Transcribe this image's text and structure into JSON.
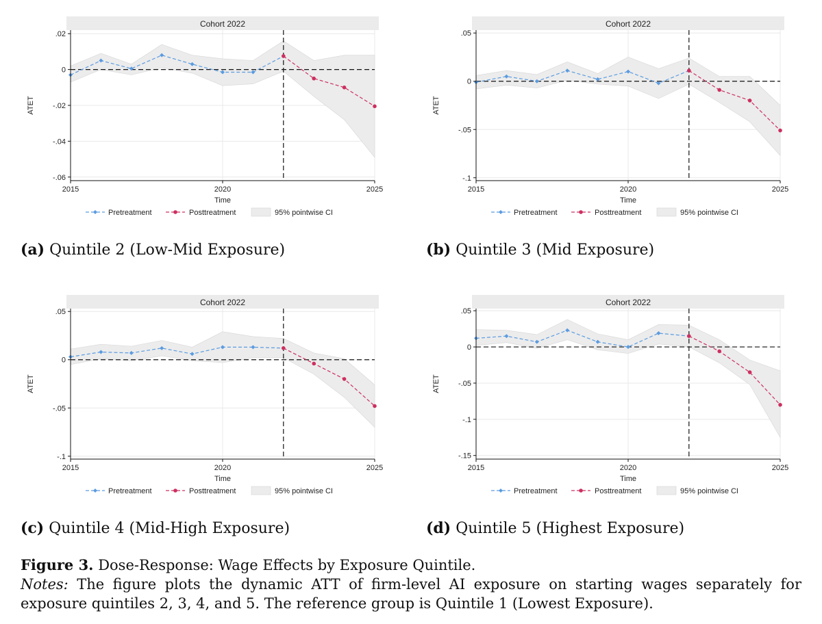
{
  "colors": {
    "pre": "#5b9be0",
    "post": "#cc3060",
    "ci_fill": "#ececec",
    "strip": "#ebebeb",
    "grid": "#e8e8e8"
  },
  "legend": {
    "pre": "Pretreatment",
    "post": "Posttreatment",
    "ci": "95% pointwise CI"
  },
  "chart_data": [
    {
      "type": "line",
      "strip_title": "Cohort 2022",
      "xlabel": "Time",
      "ylabel": "ATET",
      "xlim": [
        2015,
        2025
      ],
      "ylim": [
        -0.062,
        0.022
      ],
      "yticks": [
        0.02,
        0,
        -0.02,
        -0.04,
        -0.06
      ],
      "ytick_labels": [
        ".02",
        "0",
        "-.02",
        "-.04",
        "-.06"
      ],
      "xticks": [
        2015,
        2020,
        2025
      ],
      "treatment_year": 2022,
      "x": [
        2015,
        2016,
        2017,
        2018,
        2019,
        2020,
        2021,
        2022,
        2023,
        2024,
        2025
      ],
      "series": [
        {
          "name": "Pretreatment",
          "x": [
            2015,
            2016,
            2017,
            2018,
            2019,
            2020,
            2021,
            2022
          ],
          "values": [
            -0.003,
            0.005,
            0.0005,
            0.008,
            0.003,
            -0.0015,
            -0.0015,
            0.0075
          ]
        },
        {
          "name": "Posttreatment",
          "x": [
            2022,
            2023,
            2024,
            2025
          ],
          "values": [
            0.0075,
            -0.005,
            -0.01,
            -0.0205
          ]
        }
      ],
      "ci_lower": [
        -0.007,
        0.0,
        -0.003,
        0.001,
        -0.002,
        -0.009,
        -0.008,
        -0.001,
        -0.015,
        -0.028,
        -0.049
      ],
      "ci_upper": [
        0.002,
        0.009,
        0.003,
        0.014,
        0.008,
        0.006,
        0.005,
        0.016,
        0.005,
        0.008,
        0.008
      ],
      "caption_label": "(a)",
      "caption_text": "Quintile 2 (Low-Mid Exposure)"
    },
    {
      "type": "line",
      "strip_title": "Cohort 2022",
      "xlabel": "Time",
      "ylabel": "ATET",
      "xlim": [
        2015,
        2025
      ],
      "ylim": [
        -0.103,
        0.053
      ],
      "yticks": [
        0.05,
        0,
        -0.05,
        -0.1
      ],
      "ytick_labels": [
        ".05",
        "0",
        "-.05",
        "-.1"
      ],
      "xticks": [
        2015,
        2020,
        2025
      ],
      "treatment_year": 2022,
      "x": [
        2015,
        2016,
        2017,
        2018,
        2019,
        2020,
        2021,
        2022,
        2023,
        2024,
        2025
      ],
      "series": [
        {
          "name": "Pretreatment",
          "x": [
            2015,
            2016,
            2017,
            2018,
            2019,
            2020,
            2021,
            2022
          ],
          "values": [
            -0.001,
            0.005,
            0.0,
            0.011,
            0.002,
            0.01,
            -0.002,
            0.011
          ]
        },
        {
          "name": "Posttreatment",
          "x": [
            2022,
            2023,
            2024,
            2025
          ],
          "values": [
            0.011,
            -0.009,
            -0.02,
            -0.051
          ]
        }
      ],
      "ci_lower": [
        -0.008,
        -0.004,
        -0.007,
        0.001,
        -0.003,
        -0.005,
        -0.018,
        -0.003,
        -0.022,
        -0.042,
        -0.077
      ],
      "ci_upper": [
        0.006,
        0.011,
        0.007,
        0.02,
        0.008,
        0.025,
        0.013,
        0.024,
        0.005,
        0.005,
        -0.025
      ],
      "caption_label": "(b)",
      "caption_text": "Quintile 3 (Mid Exposure)"
    },
    {
      "type": "line",
      "strip_title": "Cohort 2022",
      "xlabel": "Time",
      "ylabel": "ATET",
      "xlim": [
        2015,
        2025
      ],
      "ylim": [
        -0.103,
        0.053
      ],
      "yticks": [
        0.05,
        0,
        -0.05,
        -0.1
      ],
      "ytick_labels": [
        ".05",
        "0",
        "-.05",
        "-.1"
      ],
      "xticks": [
        2015,
        2020,
        2025
      ],
      "treatment_year": 2022,
      "x": [
        2015,
        2016,
        2017,
        2018,
        2019,
        2020,
        2021,
        2022,
        2023,
        2024,
        2025
      ],
      "series": [
        {
          "name": "Pretreatment",
          "x": [
            2015,
            2016,
            2017,
            2018,
            2019,
            2020,
            2021,
            2022
          ],
          "values": [
            0.003,
            0.008,
            0.007,
            0.012,
            0.006,
            0.013,
            0.013,
            0.012
          ]
        },
        {
          "name": "Posttreatment",
          "x": [
            2022,
            2023,
            2024,
            2025
          ],
          "values": [
            0.012,
            -0.004,
            -0.02,
            -0.048
          ]
        }
      ],
      "ci_lower": [
        -0.005,
        0.001,
        -0.001,
        0.004,
        -0.001,
        -0.003,
        0.002,
        0.002,
        -0.015,
        -0.039,
        -0.07
      ],
      "ci_upper": [
        0.011,
        0.016,
        0.014,
        0.02,
        0.013,
        0.029,
        0.024,
        0.022,
        0.007,
        0.001,
        -0.026
      ],
      "caption_label": "(c)",
      "caption_text": "Quintile 4 (Mid-High Exposure)"
    },
    {
      "type": "line",
      "strip_title": "Cohort 2022",
      "xlabel": "Time",
      "ylabel": "ATET",
      "xlim": [
        2015,
        2025
      ],
      "ylim": [
        -0.155,
        0.053
      ],
      "yticks": [
        0.05,
        0,
        -0.05,
        -0.1,
        -0.15
      ],
      "ytick_labels": [
        ".05",
        "0",
        "-.05",
        "-.1",
        "-.15"
      ],
      "xticks": [
        2015,
        2020,
        2025
      ],
      "treatment_year": 2022,
      "x": [
        2015,
        2016,
        2017,
        2018,
        2019,
        2020,
        2021,
        2022,
        2023,
        2024,
        2025
      ],
      "series": [
        {
          "name": "Pretreatment",
          "x": [
            2015,
            2016,
            2017,
            2018,
            2019,
            2020,
            2021,
            2022
          ],
          "values": [
            0.012,
            0.015,
            0.007,
            0.023,
            0.007,
            0.0,
            0.019,
            0.015
          ]
        },
        {
          "name": "Posttreatment",
          "x": [
            2022,
            2023,
            2024,
            2025
          ],
          "values": [
            0.015,
            -0.006,
            -0.035,
            -0.08
          ]
        }
      ],
      "ci_lower": [
        0.002,
        0.006,
        -0.002,
        0.01,
        -0.004,
        -0.009,
        0.004,
        0.0,
        -0.022,
        -0.052,
        -0.125
      ],
      "ci_upper": [
        0.024,
        0.023,
        0.017,
        0.038,
        0.018,
        0.01,
        0.031,
        0.03,
        0.01,
        -0.018,
        -0.033
      ],
      "caption_label": "(d)",
      "caption_text": "Quintile 5 (Highest Exposure)"
    }
  ],
  "figure": {
    "label": "Figure 3.",
    "title": "Dose-Response: Wage Effects by Exposure Quintile.",
    "notes_label": "Notes:",
    "notes_line1": "The figure plots the dynamic ATT of firm-level AI exposure on starting wages separately for",
    "notes_line2": "exposure quintiles 2, 3, 4, and 5. The reference group is Quintile 1 (Lowest Exposure)."
  }
}
